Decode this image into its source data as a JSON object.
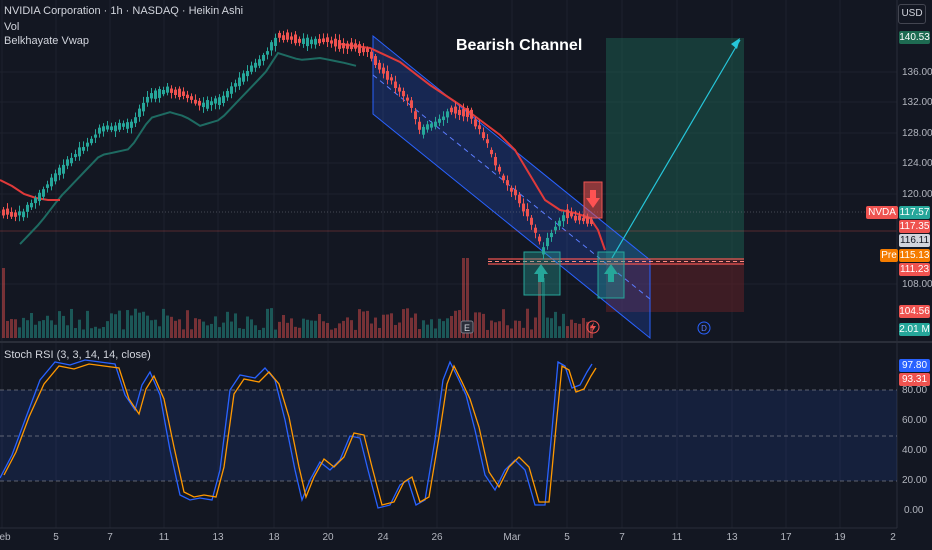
{
  "header": {
    "symbol_line": "NVIDIA Corporation · 1h · NASDAQ · Heikin Ashi",
    "indicator_vol": "Vol",
    "indicator_vwap": "Belkhayate Vwap",
    "currency": "USD"
  },
  "annotation": {
    "title": "Bearish Channel"
  },
  "price_axis": {
    "labels": [
      "136.00",
      "132.00",
      "128.00",
      "124.00",
      "120.00",
      "108.00"
    ]
  },
  "price_tags": {
    "target": "140.53",
    "symbol": "NVDA",
    "last": "117.57",
    "red1": "117.35",
    "gray": "116.11",
    "pre_label": "Pre",
    "pre_value": "115.13",
    "red2": "111.23",
    "stop": "104.56",
    "volume": "2.01 M"
  },
  "stoch": {
    "title": "Stoch RSI (3, 3, 14, 14, close)",
    "k_value": "97.80",
    "d_value": "93.31",
    "labels": [
      "80.00",
      "60.00",
      "40.00",
      "20.00",
      "0.00"
    ]
  },
  "time_axis": [
    "Feb",
    "5",
    "7",
    "11",
    "13",
    "18",
    "20",
    "24",
    "26",
    "Mar",
    "5",
    "7",
    "11",
    "13",
    "17",
    "19",
    "2"
  ],
  "event_badges": {
    "earnings": "E",
    "dividend": "D"
  },
  "colors": {
    "background": "#131722",
    "up": "#26a69a",
    "down": "#ef5350",
    "channel": "#2962ff",
    "vwap_slow": "#1e6b62",
    "vwap_fast": "#e03a3a",
    "stoch_k": "#2962ff",
    "stoch_d": "#ff9800"
  }
}
